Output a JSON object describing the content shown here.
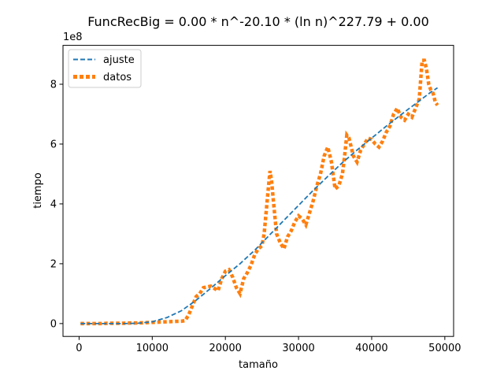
{
  "chart_data": {
    "type": "line",
    "title": "FuncRecBig = 0.00 * n^-20.10 * (ln n)^227.79 + 0.00",
    "xlabel": "tamaño",
    "ylabel": "tiempo",
    "y_offset_label": "1e8",
    "y_scale_factor": 100000000,
    "xlim": [
      -2200,
      51200
    ],
    "ylim": [
      -43000000,
      930000000
    ],
    "x_ticks": [
      0,
      10000,
      20000,
      30000,
      40000,
      50000
    ],
    "x_tick_labels": [
      "0",
      "10000",
      "20000",
      "30000",
      "40000",
      "50000"
    ],
    "y_ticks": [
      0,
      200000000,
      400000000,
      600000000,
      800000000
    ],
    "y_tick_labels": [
      "0",
      "2",
      "4",
      "6",
      "8"
    ],
    "grid": false,
    "legend_position": "upper-left",
    "colors": {
      "ajuste": "#1f77b4",
      "datos": "#ff7f0e"
    },
    "series": [
      {
        "name": "ajuste",
        "style": "dashed",
        "x": [
          200,
          2000,
          4000,
          6000,
          8000,
          10000,
          12000,
          14000,
          16000,
          18000,
          20000,
          22000,
          24000,
          26000,
          28000,
          30000,
          32000,
          34000,
          36000,
          38000,
          40000,
          42000,
          44000,
          46000,
          48000,
          49000
        ],
        "y": [
          0,
          0,
          0,
          0,
          1000000,
          6000000,
          20000000,
          43000000,
          78000000,
          118000000,
          160000000,
          200000000,
          245000000,
          295000000,
          345000000,
          395000000,
          445000000,
          492000000,
          538000000,
          580000000,
          620000000,
          660000000,
          698000000,
          735000000,
          772000000,
          788000000
        ]
      },
      {
        "name": "datos",
        "style": "dotted",
        "x": [
          200,
          1000,
          2000,
          3000,
          4000,
          5000,
          6000,
          7000,
          8000,
          9000,
          10000,
          11000,
          12000,
          13000,
          14000,
          14500,
          15000,
          15500,
          16000,
          16500,
          17000,
          18000,
          19000,
          19500,
          20000,
          20500,
          21000,
          21500,
          22000,
          22500,
          23000,
          23500,
          24000,
          24500,
          25000,
          25300,
          25600,
          25900,
          26100,
          26300,
          26600,
          27000,
          27500,
          28000,
          28500,
          29000,
          29500,
          30000,
          30500,
          31000,
          31500,
          32000,
          32500,
          33000,
          33500,
          34000,
          34500,
          35000,
          35500,
          36000,
          36300,
          36600,
          36900,
          37200,
          37500,
          38000,
          38500,
          39000,
          39500,
          40000,
          40500,
          41000,
          41500,
          42000,
          42500,
          43000,
          43500,
          44000,
          44500,
          45000,
          45500,
          46000,
          46500,
          46900,
          47200,
          47500,
          47800,
          48100,
          48400,
          48700,
          49000
        ],
        "y": [
          0,
          0,
          0,
          0,
          1000000,
          1000000,
          1000000,
          2000000,
          2000000,
          3000000,
          4000000,
          5000000,
          6000000,
          7000000,
          8000000,
          10000000,
          30000000,
          60000000,
          90000000,
          100000000,
          120000000,
          125000000,
          110000000,
          150000000,
          175000000,
          180000000,
          155000000,
          120000000,
          100000000,
          150000000,
          170000000,
          195000000,
          230000000,
          250000000,
          260000000,
          300000000,
          380000000,
          460000000,
          510000000,
          480000000,
          400000000,
          300000000,
          270000000,
          250000000,
          290000000,
          310000000,
          340000000,
          360000000,
          350000000,
          330000000,
          370000000,
          410000000,
          460000000,
          500000000,
          560000000,
          590000000,
          540000000,
          450000000,
          460000000,
          500000000,
          560000000,
          630000000,
          620000000,
          590000000,
          560000000,
          540000000,
          580000000,
          600000000,
          620000000,
          615000000,
          600000000,
          590000000,
          610000000,
          640000000,
          660000000,
          700000000,
          720000000,
          690000000,
          680000000,
          700000000,
          690000000,
          720000000,
          750000000,
          880000000,
          880000000,
          850000000,
          800000000,
          780000000,
          770000000,
          740000000,
          730000000
        ]
      }
    ]
  }
}
